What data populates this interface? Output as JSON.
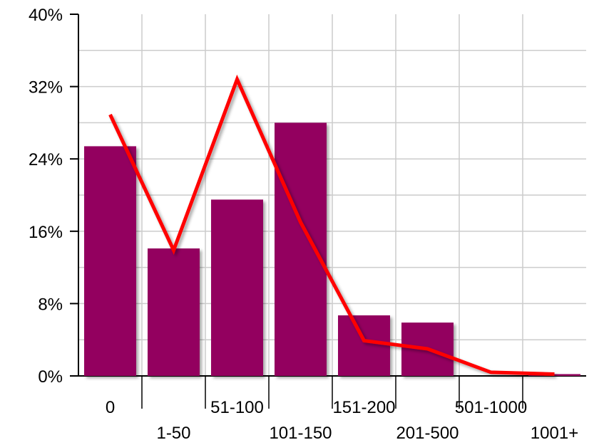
{
  "chart_data": {
    "type": "bar",
    "categories": [
      "0",
      "1-50",
      "51-100",
      "101-150",
      "151-200",
      "201-500",
      "501-1000",
      "1001+"
    ],
    "series": [
      {
        "type": "bar",
        "values": [
          25.4,
          14.1,
          19.5,
          28.0,
          6.7,
          5.9,
          0.0,
          0.2
        ],
        "color": "#93005f"
      },
      {
        "type": "line",
        "values": [
          28.9,
          13.9,
          32.8,
          17.0,
          3.9,
          3.0,
          0.4,
          0.2
        ],
        "color": "#ff0000"
      }
    ],
    "ylim": [
      0,
      40
    ],
    "y_ticks": [
      "0%",
      "8%",
      "16%",
      "24%",
      "32%",
      "40%"
    ],
    "y_tick_values": [
      0,
      8,
      16,
      24,
      32,
      40
    ],
    "grid": true
  }
}
